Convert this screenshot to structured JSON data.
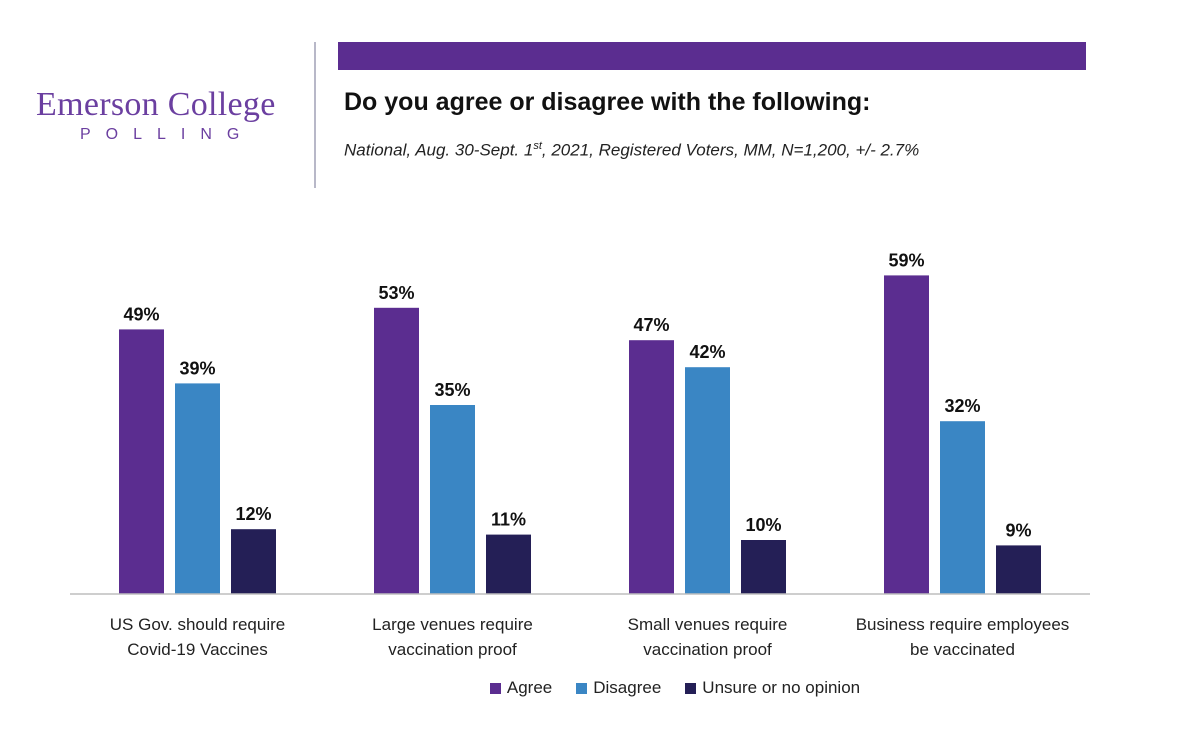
{
  "logo": {
    "name": "Emerson College",
    "sub": "POLLING"
  },
  "title": "Do you agree or disagree with the following:",
  "subtitle": {
    "pre": "National, Aug. 30-Sept. 1",
    "sup": "st",
    "post": ", 2021, Registered Voters, MM, N=1,200, +/- 2.7%"
  },
  "colors": {
    "agree": "#5b2d90",
    "disagree": "#3a86c4",
    "unsure": "#241f56",
    "bar_top": "#5b2d90"
  },
  "chart_data": {
    "type": "bar",
    "categories": [
      [
        "US Gov. should require",
        "Covid-19 Vaccines"
      ],
      [
        "Large venues require",
        "vaccination proof"
      ],
      [
        "Small venues require",
        "vaccination proof"
      ],
      [
        "Business require employees",
        "be vaccinated"
      ]
    ],
    "series": [
      {
        "name": "Agree",
        "values": [
          49,
          53,
          47,
          59
        ],
        "labels": [
          "49%",
          "53%",
          "47%",
          "59%"
        ]
      },
      {
        "name": "Disagree",
        "values": [
          39,
          35,
          42,
          32
        ],
        "labels": [
          "39%",
          "35%",
          "42%",
          "32%"
        ]
      },
      {
        "name": "Unsure or no opinion",
        "values": [
          12,
          11,
          10,
          9
        ],
        "labels": [
          "12%",
          "11%",
          "10%",
          "9%"
        ]
      }
    ],
    "ylim": [
      0,
      100
    ],
    "grid": false,
    "legend": "bottom"
  }
}
